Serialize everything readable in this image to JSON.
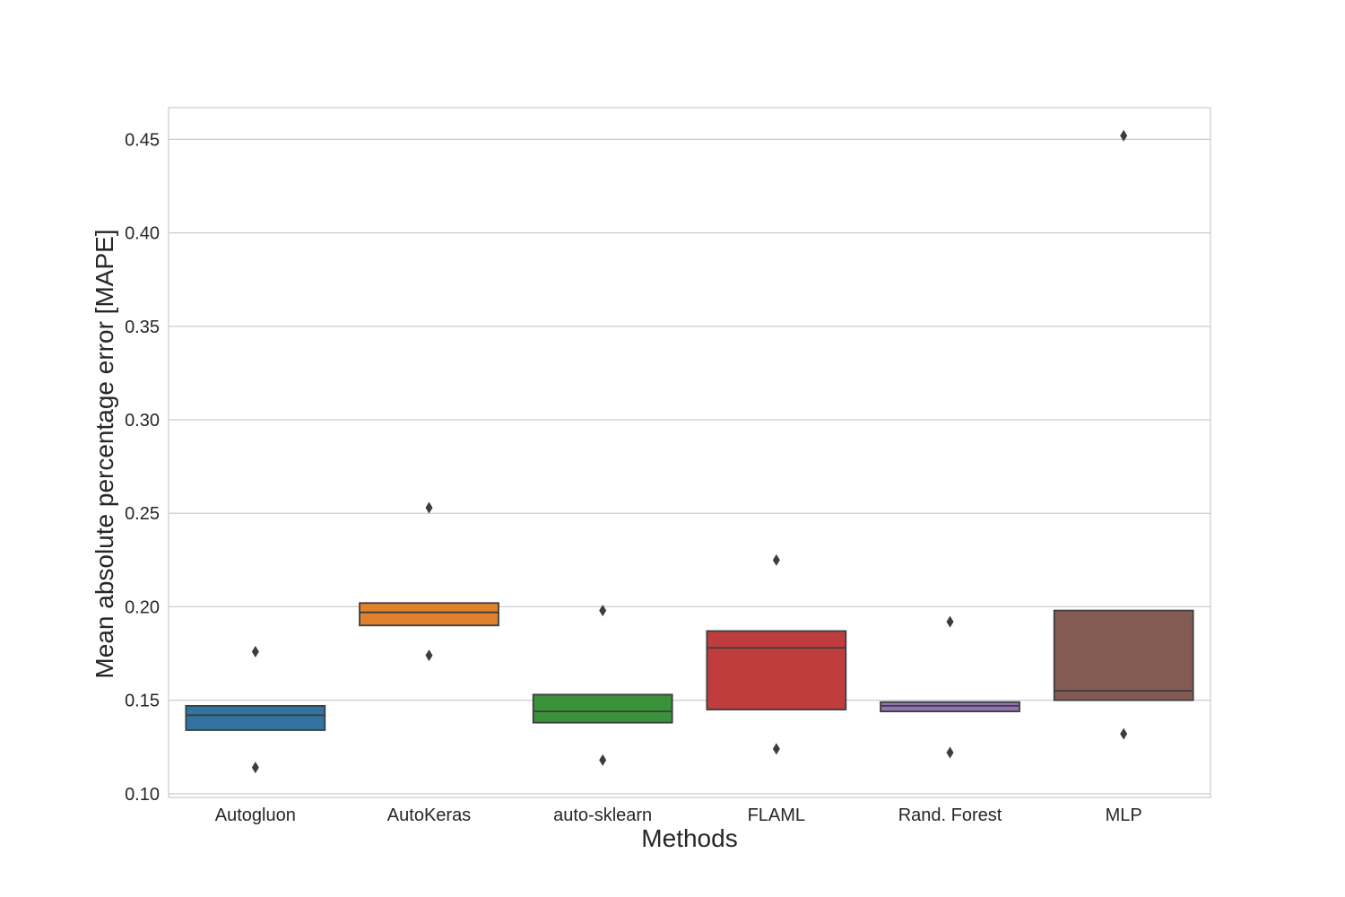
{
  "chart_data": {
    "type": "boxen",
    "xlabel": "Methods",
    "ylabel": "Mean absolute percentage error [MAPE]",
    "ylim": [
      0.098,
      0.467
    ],
    "yticks": [
      "0.10",
      "0.15",
      "0.20",
      "0.25",
      "0.30",
      "0.35",
      "0.40",
      "0.45"
    ],
    "grid": true,
    "categories": [
      "Autogluon",
      "AutoKeras",
      "auto-sklearn",
      "FLAML",
      "Rand. Forest",
      "MLP"
    ],
    "boxes": [
      {
        "name": "Autogluon",
        "q1": 0.134,
        "median": 0.142,
        "q3": 0.147,
        "outliers": [
          0.176,
          0.114
        ],
        "color": "#3274a1"
      },
      {
        "name": "AutoKeras",
        "q1": 0.19,
        "median": 0.197,
        "q3": 0.202,
        "outliers": [
          0.253,
          0.174
        ],
        "color": "#e1812c"
      },
      {
        "name": "auto-sklearn",
        "q1": 0.138,
        "median": 0.144,
        "q3": 0.153,
        "outliers": [
          0.198,
          0.118
        ],
        "color": "#3a923a"
      },
      {
        "name": "FLAML",
        "q1": 0.145,
        "median": 0.178,
        "q3": 0.187,
        "outliers": [
          0.225,
          0.124
        ],
        "color": "#c03d3e"
      },
      {
        "name": "Rand. Forest",
        "q1": 0.144,
        "median": 0.147,
        "q3": 0.149,
        "outliers": [
          0.192,
          0.122
        ],
        "color": "#9372b2"
      },
      {
        "name": "MLP",
        "q1": 0.15,
        "median": 0.155,
        "q3": 0.198,
        "outliers": [
          0.452,
          0.132
        ],
        "color": "#845b53"
      }
    ]
  }
}
